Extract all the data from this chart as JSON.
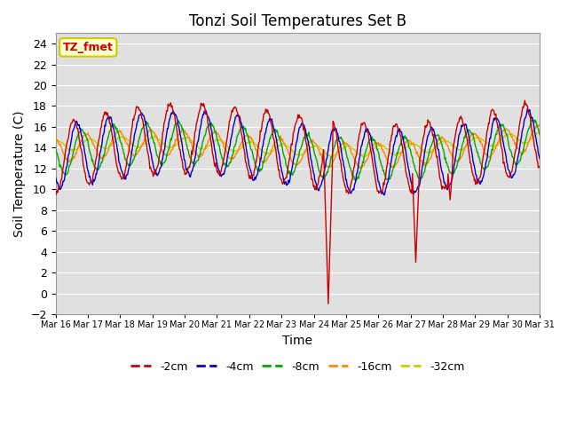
{
  "title": "Tonzi Soil Temperatures Set B",
  "xlabel": "Time",
  "ylabel": "Soil Temperature (C)",
  "ylim": [
    -2,
    25
  ],
  "yticks": [
    -2,
    0,
    2,
    4,
    6,
    8,
    10,
    12,
    14,
    16,
    18,
    20,
    22,
    24
  ],
  "annotation_label": "TZ_fmet",
  "annotation_box_color": "#ffffcc",
  "annotation_border_color": "#cccc00",
  "series_colors": [
    "#cc0000",
    "#0000cc",
    "#00aa00",
    "#ff8800",
    "#cccc00"
  ],
  "series_labels": [
    "-2cm",
    "-4cm",
    "-8cm",
    "-16cm",
    "-32cm"
  ],
  "axes_background": "#e0e0e0",
  "grid_color": "#ffffff",
  "n_days": 15,
  "start_day": 16,
  "points_per_day": 48
}
